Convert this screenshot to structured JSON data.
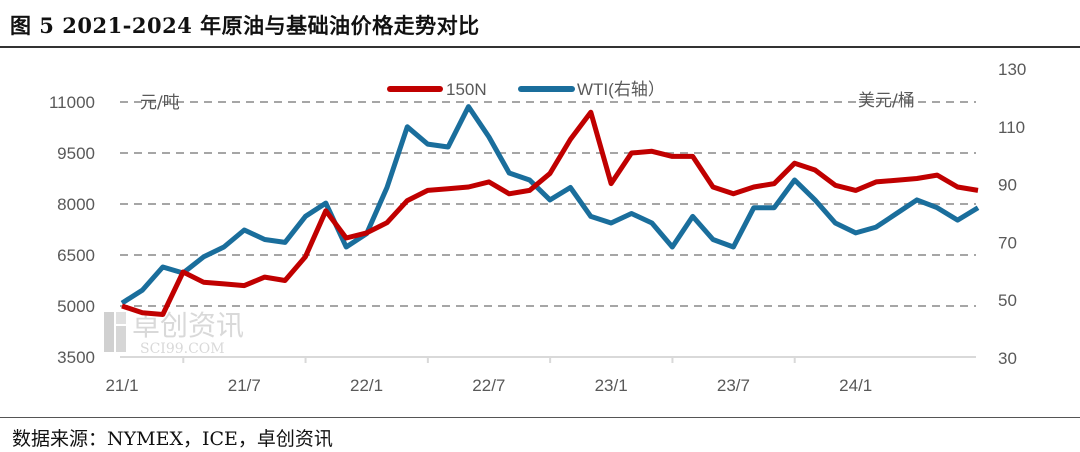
{
  "title": "图 5 2021-2024 年原油与基础油价格走势对比",
  "source": "数据来源：NYMEX，ICE，卓创资讯",
  "watermark": {
    "cn": "卓创资讯",
    "en": "SCI99.COM"
  },
  "colors": {
    "series_150N": "#C00000",
    "series_WTI": "#1A6E9C",
    "grid": "#A6A6A6",
    "axis": "#D9D9D9"
  },
  "chart_data": {
    "type": "line",
    "title": "2021-2024 年原油与基础油价格走势对比",
    "left_unit": "元/吨",
    "right_unit": "美元/桶",
    "x_ticks": [
      "21/1",
      "21/7",
      "22/1",
      "22/7",
      "23/1",
      "23/7",
      "24/1"
    ],
    "x_months": [
      "21/1",
      "21/2",
      "21/3",
      "21/4",
      "21/5",
      "21/6",
      "21/7",
      "21/8",
      "21/9",
      "21/10",
      "21/11",
      "21/12",
      "22/1",
      "22/2",
      "22/3",
      "22/4",
      "22/5",
      "22/6",
      "22/7",
      "22/8",
      "22/9",
      "22/10",
      "22/11",
      "22/12",
      "23/1",
      "23/2",
      "23/3",
      "23/4",
      "23/5",
      "23/6",
      "23/7",
      "23/8",
      "23/9",
      "23/10",
      "23/11",
      "23/12",
      "24/1",
      "24/2",
      "24/3",
      "24/4",
      "24/5",
      "24/6",
      "24/7"
    ],
    "ylim_left": [
      3500,
      11000
    ],
    "yticks_left": [
      "3500",
      "5000",
      "6500",
      "8000",
      "9500",
      "11000"
    ],
    "ylim_right": [
      30,
      130
    ],
    "yticks_right": [
      "30",
      "50",
      "70",
      "90",
      "110",
      "130"
    ],
    "grid": true,
    "legend_position": "top",
    "series": [
      {
        "name": "150N",
        "axis": "left",
        "values": [
          5000,
          4800,
          4750,
          6000,
          5700,
          5650,
          5600,
          5850,
          5750,
          6450,
          7800,
          7000,
          7150,
          7450,
          8100,
          8400,
          8450,
          8500,
          8650,
          8300,
          8400,
          8900,
          9900,
          10700,
          8600,
          9500,
          9550,
          9400,
          9400,
          8500,
          8300,
          8500,
          8600,
          9200,
          9000,
          8550,
          8400,
          8650,
          8700,
          8750,
          8850,
          8500,
          8400
        ]
      },
      {
        "name": "WTI(右轴）",
        "axis": "right",
        "values": [
          49,
          53.5,
          61.5,
          59.4,
          65,
          68.4,
          74.3,
          71,
          70,
          79,
          83.6,
          68.4,
          73,
          89,
          110,
          104,
          103,
          117,
          106.5,
          94,
          91.6,
          84.7,
          89,
          79,
          76.7,
          80,
          76.7,
          68.4,
          79,
          71,
          68.4,
          82,
          82,
          91.6,
          84.7,
          76.7,
          73.3,
          75.3,
          80,
          84.7,
          82,
          77.7,
          82
        ]
      }
    ]
  }
}
